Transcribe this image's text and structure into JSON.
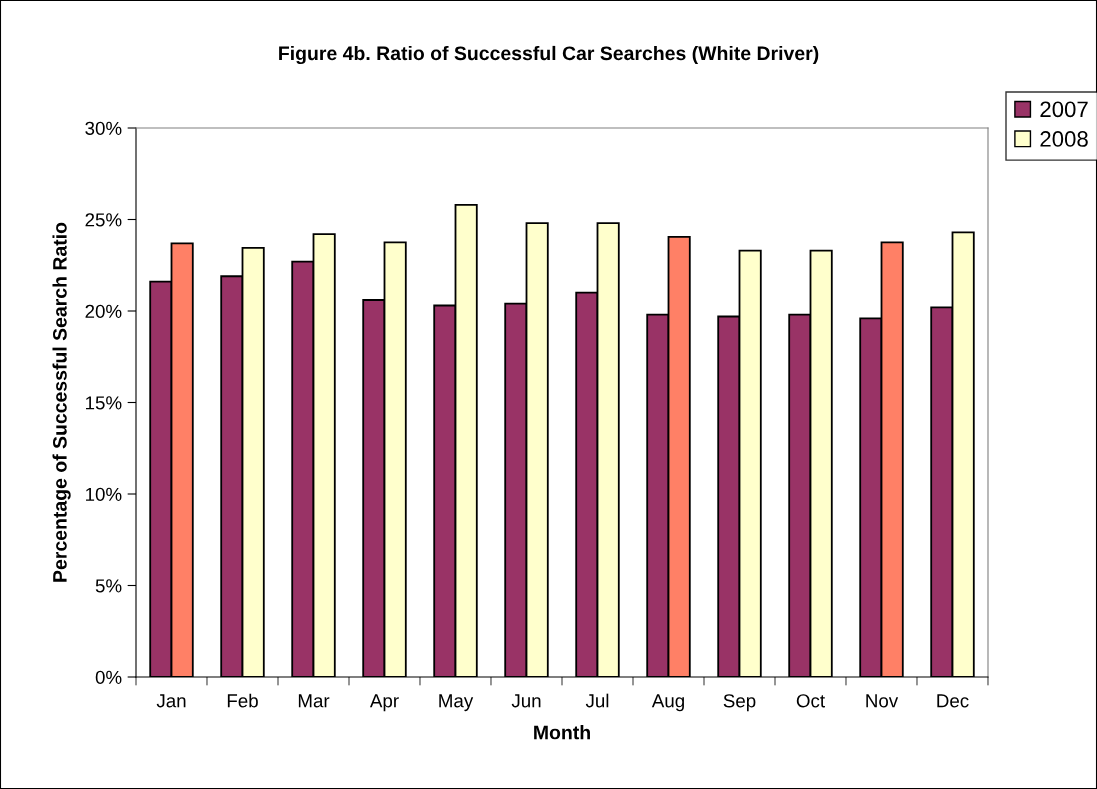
{
  "chart_data": {
    "type": "bar",
    "title": "Figure 4b. Ratio of Successful Car Searches (White Driver)",
    "xlabel": "Month",
    "ylabel": "Percentage of Successful Search Ratio",
    "categories": [
      "Jan",
      "Feb",
      "Mar",
      "Apr",
      "May",
      "Jun",
      "Jul",
      "Aug",
      "Sep",
      "Oct",
      "Nov",
      "Dec"
    ],
    "series": [
      {
        "name": "2007",
        "color": "#993366",
        "values": [
          21.6,
          21.9,
          22.7,
          20.6,
          20.3,
          20.4,
          21.0,
          19.8,
          19.7,
          19.8,
          19.6,
          20.2
        ]
      },
      {
        "name": "2008",
        "color": "#ffffcc",
        "colors": [
          "#ff8066",
          "#ffffcc",
          "#ffffcc",
          "#ffffcc",
          "#ffffcc",
          "#ffffcc",
          "#ffffcc",
          "#ff8066",
          "#ffffcc",
          "#ffffcc",
          "#ff8066",
          "#ffffcc"
        ],
        "values": [
          23.7,
          23.45,
          24.2,
          23.75,
          25.8,
          24.8,
          24.8,
          24.05,
          23.3,
          23.3,
          23.75,
          24.3
        ]
      }
    ],
    "ylim": [
      0,
      30
    ],
    "yticks": [
      {
        "value": 0,
        "label": "0%"
      },
      {
        "value": 5,
        "label": "5%"
      },
      {
        "value": 10,
        "label": "10%"
      },
      {
        "value": 15,
        "label": "15%"
      },
      {
        "value": 20,
        "label": "20%"
      },
      {
        "value": 25,
        "label": "25%"
      },
      {
        "value": 30,
        "label": "30%"
      }
    ],
    "legend": "top right",
    "grid": false
  }
}
